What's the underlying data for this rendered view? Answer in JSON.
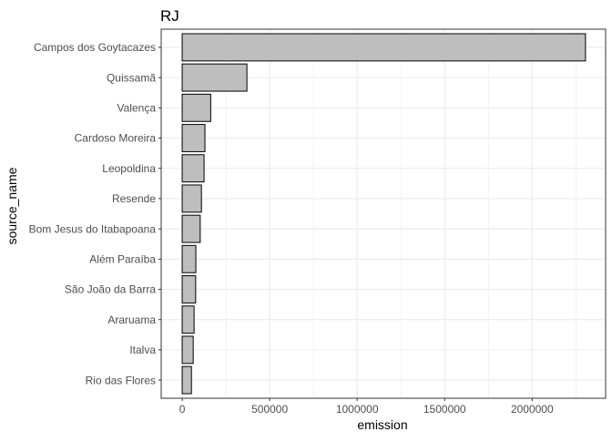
{
  "chart_data": {
    "type": "bar",
    "orientation": "horizontal",
    "title": "RJ",
    "xlabel": "emission",
    "ylabel": "source_name",
    "categories": [
      "Campos dos Goytacazes",
      "Quissamã",
      "Valença",
      "Cardoso Moreira",
      "Leopoldina",
      "Resende",
      "Bom Jesus do Itabapoana",
      "Além Paraíba",
      "São João da Barra",
      "Araruama",
      "Italva",
      "Rio das Flores"
    ],
    "values": [
      2305000,
      370000,
      163000,
      130000,
      125000,
      110000,
      103000,
      78000,
      77000,
      68000,
      63000,
      53000
    ],
    "xticks": [
      0,
      500000,
      1000000,
      1500000,
      2000000
    ],
    "xtick_labels": [
      "0",
      "500000",
      "1000000",
      "1500000",
      "2000000"
    ],
    "xlim": [
      -120000,
      2420000
    ],
    "grid": true,
    "bar_fill": "#bebebe",
    "bar_stroke": "#000000",
    "grid_color": "#ebebeb",
    "panel_border_color": "#333333",
    "tick_label_color": "#4d4d4d",
    "text_color": "#000000"
  }
}
